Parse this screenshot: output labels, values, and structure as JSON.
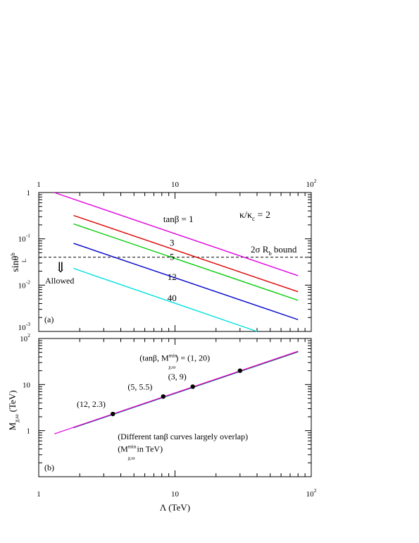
{
  "chart_data": [
    {
      "panel_label": "(a)",
      "type": "line",
      "xscale": "log",
      "yscale": "log",
      "xlim": [
        1,
        100
      ],
      "ylim": [
        0.001,
        1
      ],
      "x_tick_labels_top": [
        {
          "v": 1,
          "base": "1",
          "exp": ""
        },
        {
          "v": 10,
          "base": "10",
          "exp": ""
        },
        {
          "v": 100,
          "base": "10",
          "exp": "2"
        }
      ],
      "y_tick_labels": [
        {
          "v": 1,
          "base": "1",
          "exp": ""
        },
        {
          "v": 0.1,
          "base": "10",
          "exp": "-1"
        },
        {
          "v": 0.01,
          "base": "10",
          "exp": "-2"
        },
        {
          "v": 0.001,
          "base": "10",
          "exp": "-3"
        }
      ],
      "ylabel": {
        "base": "sinθ",
        "sub": "L",
        "sup": "b"
      },
      "annotation": {
        "base": "κ/κ",
        "sub": "c",
        "tail": " = 2"
      },
      "bound": {
        "value": 0.04,
        "base": "2σ R",
        "sub": "b",
        "tail": " bound",
        "style": "dashed"
      },
      "allowed": {
        "arrow": "⇓",
        "text": "Allowed"
      },
      "series": [
        {
          "label": "tanβ = 1",
          "color": "#e000e0",
          "x": [
            1.3,
            80
          ],
          "y": [
            1.0,
            0.016
          ],
          "label_at": [
            8.2,
            0.23
          ]
        },
        {
          "label": "3",
          "color": "#e00000",
          "x": [
            1.8,
            80
          ],
          "y": [
            0.32,
            0.0072
          ],
          "label_at": [
            9.5,
            0.071
          ]
        },
        {
          "label": "5",
          "color": "#00cc00",
          "x": [
            1.8,
            80
          ],
          "y": [
            0.21,
            0.0047
          ],
          "label_at": [
            9.5,
            0.035
          ]
        },
        {
          "label": "12",
          "color": "#0000cc",
          "x": [
            1.8,
            80
          ],
          "y": [
            0.08,
            0.0018
          ],
          "label_at": [
            9.5,
            0.013
          ]
        },
        {
          "label": "40",
          "color": "#00e0e0",
          "x": [
            1.8,
            40
          ],
          "y": [
            0.023,
            0.001
          ],
          "label_at": [
            9.5,
            0.0045
          ]
        }
      ]
    },
    {
      "panel_label": "(b)",
      "type": "line",
      "xscale": "log",
      "yscale": "log",
      "xlim": [
        1,
        100
      ],
      "ylim": [
        0.1,
        100
      ],
      "x_tick_labels": [
        {
          "v": 1,
          "base": "1",
          "exp": ""
        },
        {
          "v": 10,
          "base": "10",
          "exp": ""
        },
        {
          "v": 100,
          "base": "10",
          "exp": "2"
        }
      ],
      "y_tick_labels": [
        {
          "v": 100,
          "base": "10",
          "exp": "2"
        },
        {
          "v": 10,
          "base": "10",
          "exp": ""
        },
        {
          "v": 1,
          "base": "1",
          "exp": ""
        }
      ],
      "xlabel": "Λ (TeV)",
      "ylabel": {
        "base": "M",
        "sub": "χ,ω",
        "tail": " (TeV)"
      },
      "series": [
        {
          "name": "1",
          "color": "#e000e0",
          "x": [
            1.3,
            80
          ],
          "y": [
            0.85,
            53
          ],
          "width": 1.2
        },
        {
          "name": "3",
          "color": "#e00000",
          "x": [
            1.8,
            80
          ],
          "y": [
            1.18,
            52.5
          ],
          "width": 1.2
        },
        {
          "name": "5",
          "color": "#00cc00",
          "x": [
            1.8,
            80
          ],
          "y": [
            1.17,
            52
          ],
          "width": 1.2
        },
        {
          "name": "12",
          "color": "#0000cc",
          "x": [
            1.8,
            80
          ],
          "y": [
            1.16,
            51.5
          ],
          "width": 1.2
        },
        {
          "name": "40",
          "color": "#00e0e0",
          "x": [
            1.8,
            80
          ],
          "y": [
            1.15,
            51
          ],
          "width": 1.2
        }
      ],
      "points": [
        {
          "x": 3.5,
          "y": 2.3,
          "label": "(12, 2.3)",
          "label_at": [
            1.9,
            3.3
          ]
        },
        {
          "x": 8.2,
          "y": 5.5,
          "label": "(5, 5.5)",
          "label_at": [
            4.5,
            7.8
          ]
        },
        {
          "x": 13.5,
          "y": 9,
          "label": "(3, 9)",
          "label_at": [
            8.9,
            13
          ]
        },
        {
          "x": 30,
          "y": 20,
          "label": "",
          "label_at": [
            30,
            20
          ]
        }
      ],
      "point_annotation": {
        "prefix": "(tanβ, M",
        "sub": "χ,ω",
        "sup": "min",
        "suffix": ") = (1, 20)",
        "at": [
          5.5,
          33
        ]
      },
      "notes": [
        {
          "text": "(Different tanβ curves largely overlap)",
          "at": [
            3.8,
            0.65
          ]
        },
        {
          "prefix": "(M",
          "sub": "χ,ω",
          "sup": "min",
          "suffix": " in TeV)",
          "at": [
            3.8,
            0.35
          ]
        }
      ]
    }
  ]
}
